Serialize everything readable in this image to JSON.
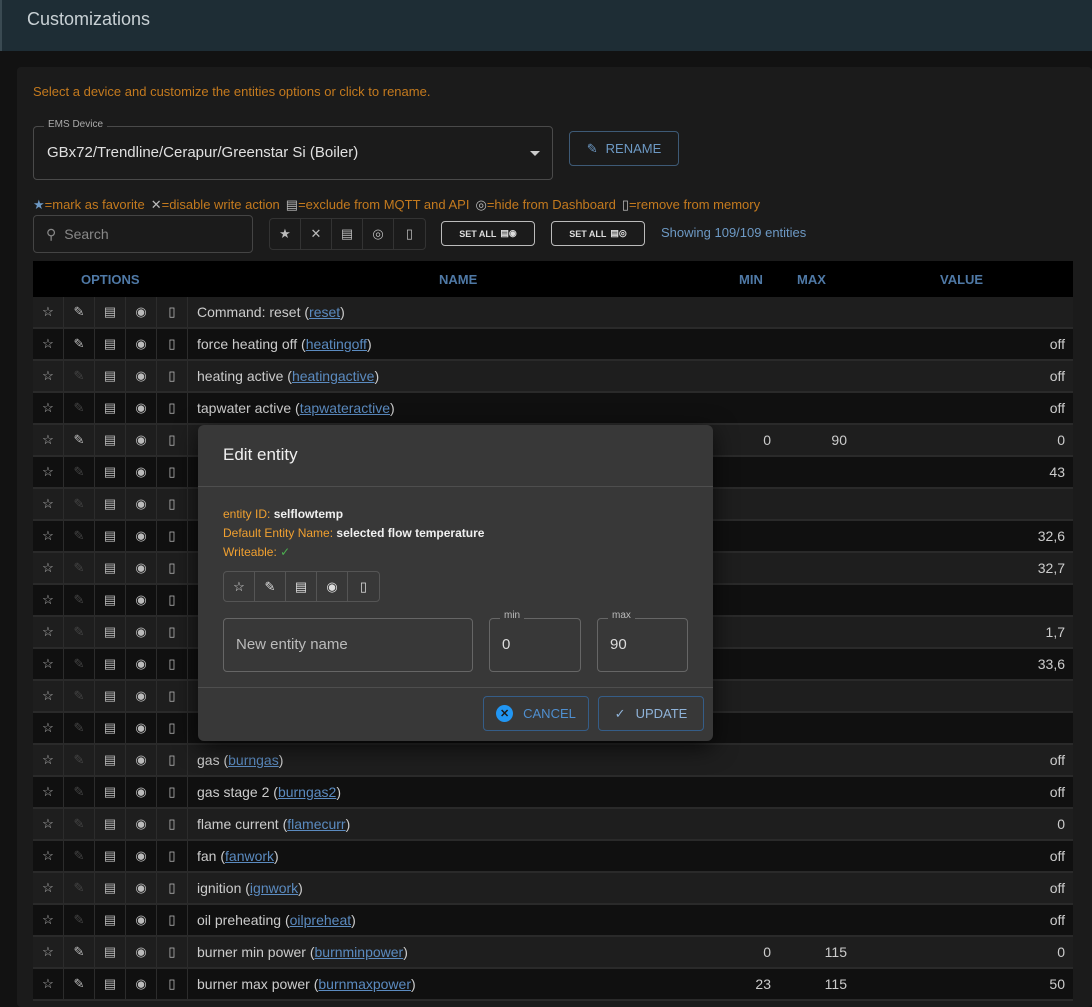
{
  "header": {
    "title": "Customizations"
  },
  "hint": "Select a device and customize the entities options or click to rename.",
  "device": {
    "label": "EMS Device",
    "value": "GBx72/Trendline/Cerapur/Greenstar Si (Boiler)"
  },
  "rename_label": "RENAME",
  "legend": [
    "=mark as favorite",
    "=disable write action",
    "=exclude from MQTT and API",
    "=hide from Dashboard",
    "=remove from memory"
  ],
  "search": {
    "placeholder": "Search"
  },
  "set_all_label": "SET ALL",
  "showing": "Showing 109/109 entities",
  "columns": {
    "options": "OPTIONS",
    "name": "NAME",
    "min": "MIN",
    "max": "MAX",
    "value": "VALUE"
  },
  "rows": [
    {
      "name": "Command: reset (",
      "id": "reset",
      "min": "",
      "max": "",
      "value": "",
      "writeable": true
    },
    {
      "name": "force heating off (",
      "id": "heatingoff",
      "min": "",
      "max": "",
      "value": "off",
      "writeable": true
    },
    {
      "name": "heating active (",
      "id": "heatingactive",
      "min": "",
      "max": "",
      "value": "off",
      "writeable": false
    },
    {
      "name": "tapwater active (",
      "id": "tapwateractive",
      "min": "",
      "max": "",
      "value": "off",
      "writeable": false
    },
    {
      "name": "",
      "id": "",
      "min": "0",
      "max": "90",
      "value": "0",
      "writeable": true
    },
    {
      "name": "",
      "id": "",
      "min": "",
      "max": "",
      "value": "43",
      "writeable": false
    },
    {
      "name": "",
      "id": "",
      "min": "",
      "max": "",
      "value": "",
      "writeable": false
    },
    {
      "name": "",
      "id": "",
      "min": "",
      "max": "",
      "value": "32,6",
      "writeable": false
    },
    {
      "name": "",
      "id": "",
      "min": "",
      "max": "",
      "value": "32,7",
      "writeable": false
    },
    {
      "name": "",
      "id": "",
      "min": "",
      "max": "",
      "value": "",
      "writeable": false
    },
    {
      "name": "",
      "id": "",
      "min": "",
      "max": "",
      "value": "1,7",
      "writeable": false
    },
    {
      "name": "",
      "id": "",
      "min": "",
      "max": "",
      "value": "33,6",
      "writeable": false
    },
    {
      "name": "",
      "id": "",
      "min": "",
      "max": "",
      "value": "",
      "writeable": false
    },
    {
      "name": "",
      "id": "",
      "min": "",
      "max": "",
      "value": "",
      "writeable": false
    },
    {
      "name": "gas (",
      "id": "burngas",
      "min": "",
      "max": "",
      "value": "off",
      "writeable": false
    },
    {
      "name": "gas stage 2 (",
      "id": "burngas2",
      "min": "",
      "max": "",
      "value": "off",
      "writeable": false
    },
    {
      "name": "flame current (",
      "id": "flamecurr",
      "min": "",
      "max": "",
      "value": "0",
      "writeable": false
    },
    {
      "name": "fan (",
      "id": "fanwork",
      "min": "",
      "max": "",
      "value": "off",
      "writeable": false
    },
    {
      "name": "ignition (",
      "id": "ignwork",
      "min": "",
      "max": "",
      "value": "off",
      "writeable": false
    },
    {
      "name": "oil preheating (",
      "id": "oilpreheat",
      "min": "",
      "max": "",
      "value": "off",
      "writeable": false
    },
    {
      "name": "burner min power (",
      "id": "burnminpower",
      "min": "0",
      "max": "115",
      "value": "0",
      "writeable": true
    },
    {
      "name": "burner max power (",
      "id": "burnmaxpower",
      "min": "23",
      "max": "115",
      "value": "50",
      "writeable": true
    }
  ],
  "modal": {
    "title": "Edit entity",
    "entity_id_label": "entity ID:",
    "entity_id": "selflowtemp",
    "default_name_label": "Default Entity Name:",
    "default_name": "selected flow temperature",
    "writeable_label": "Writeable:",
    "writeable_mark": "✓",
    "name_placeholder": "New entity name",
    "min_label": "min",
    "min_value": "0",
    "max_label": "max",
    "max_value": "90",
    "cancel": "CANCEL",
    "update": "UPDATE"
  },
  "colors": {
    "accent": "#4f8fd0",
    "warning": "#f0a030",
    "appbar": "#1e2d35"
  }
}
